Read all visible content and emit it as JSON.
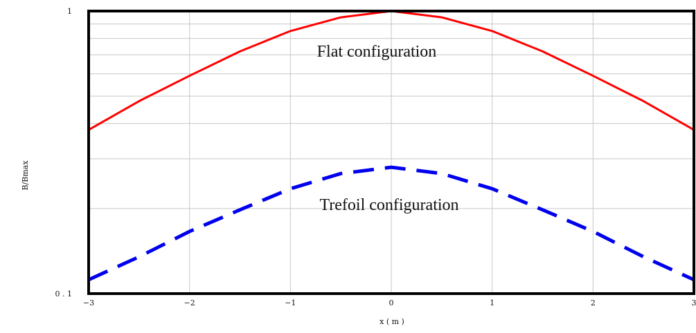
{
  "chart_data": {
    "type": "line",
    "title": "",
    "xlabel": "x ( m )",
    "ylabel": "B/Bmax",
    "xlim": [
      -3,
      3
    ],
    "ylim": [
      0.1,
      1
    ],
    "y_scale": "log",
    "grid": true,
    "x_ticks": [
      -3,
      -2,
      -1,
      0,
      1,
      2,
      3
    ],
    "x_tick_labels": [
      "−3",
      "−2",
      "−1",
      "0",
      "1",
      "2",
      "3"
    ],
    "y_tick_labels": [
      "0 . 1",
      "1"
    ],
    "annotations": [
      "Flat  configuration",
      "Trefoil configuration"
    ],
    "series": [
      {
        "color": "#ff0000",
        "style": "solid",
        "x": [
          -3,
          -2.5,
          -2,
          -1.5,
          -1,
          -0.5,
          0,
          0.5,
          1,
          1.5,
          2,
          2.5,
          3
        ],
        "y": [
          0.38,
          0.48,
          0.59,
          0.72,
          0.85,
          0.95,
          1.0,
          0.95,
          0.85,
          0.72,
          0.59,
          0.48,
          0.38
        ]
      },
      {
        "color": "#0000ee",
        "style": "dashed",
        "x": [
          -3,
          -2.5,
          -2,
          -1.5,
          -1,
          -0.5,
          0,
          0.5,
          1,
          1.5,
          2,
          2.5,
          3
        ],
        "y": [
          0.112,
          0.135,
          0.166,
          0.198,
          0.235,
          0.266,
          0.28,
          0.266,
          0.235,
          0.198,
          0.166,
          0.135,
          0.112
        ]
      }
    ]
  }
}
